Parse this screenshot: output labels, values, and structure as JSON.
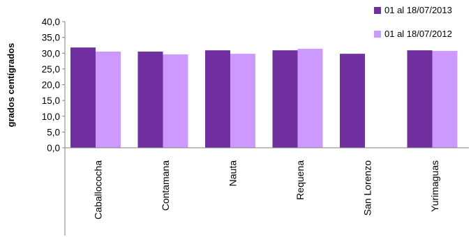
{
  "chart_data": {
    "type": "bar",
    "ylabel": "grados centígrados",
    "ylim": [
      0,
      40
    ],
    "y_ticks": [
      "0,0",
      "5,0",
      "10,0",
      "15,0",
      "20,0",
      "25,0",
      "30,0",
      "35,0",
      "40,0"
    ],
    "categories": [
      "Caballococha",
      "Contamana",
      "Nauta",
      "Requena",
      "San Lorenzo",
      "Yurimaguas"
    ],
    "series": [
      {
        "name": "01 al 18/07/2013",
        "color": "#7030A0",
        "values": [
          31.8,
          30.5,
          30.9,
          30.9,
          29.8,
          30.9
        ]
      },
      {
        "name": "01 al 18/07/2012",
        "color": "#CC99FF",
        "values": [
          30.5,
          29.6,
          29.8,
          31.4,
          null,
          30.7
        ]
      }
    ],
    "grid": false,
    "legend_position": "top-right"
  }
}
